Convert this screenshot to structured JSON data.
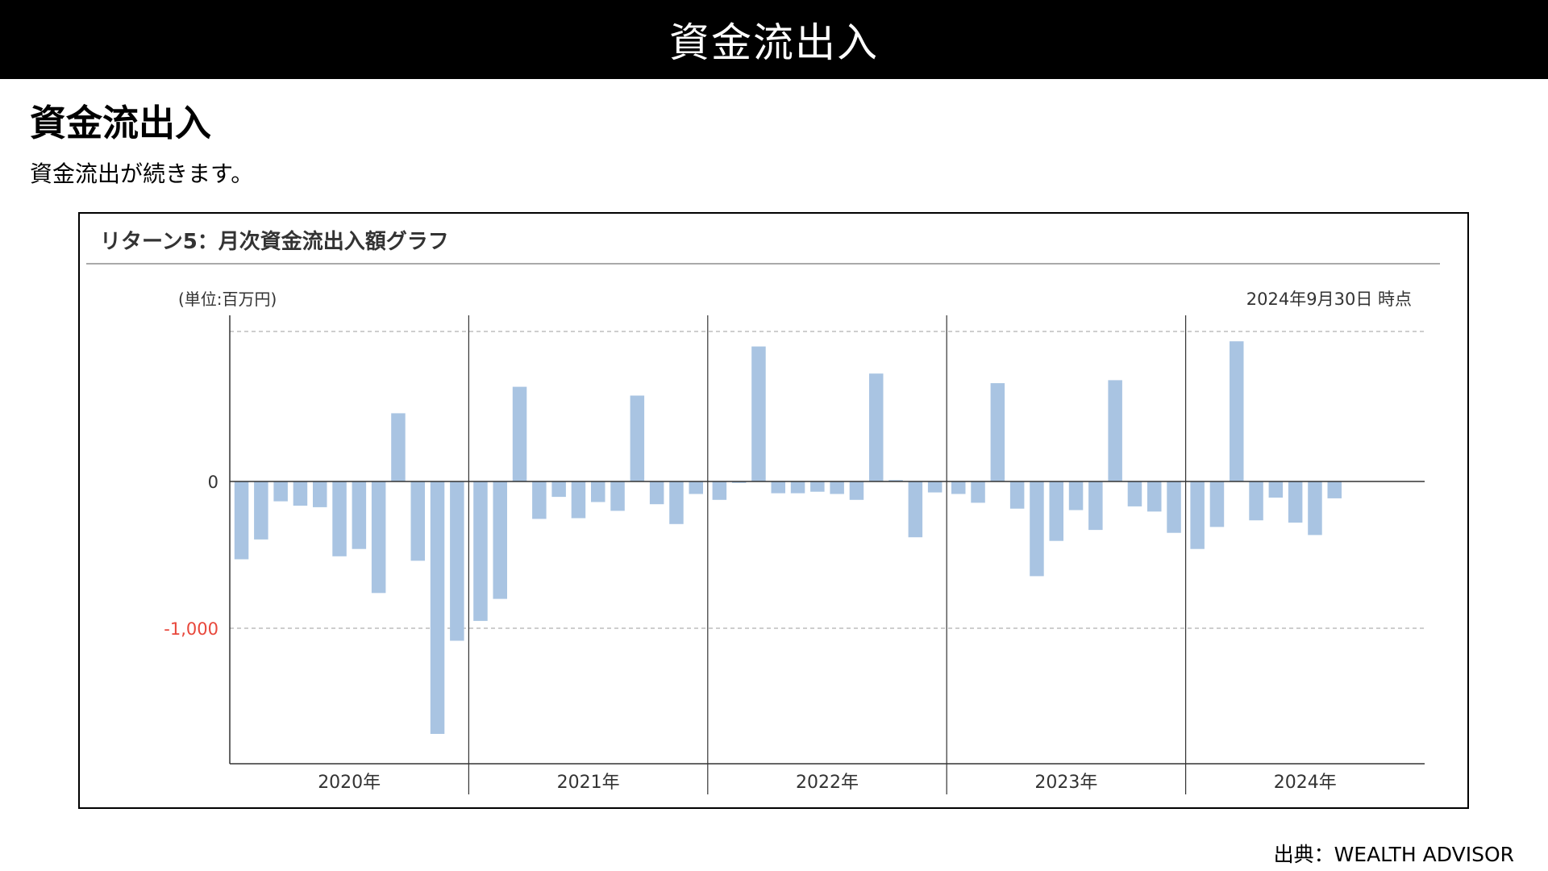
{
  "header": {
    "title": "資金流出入"
  },
  "section": {
    "heading": "資金流出入",
    "subtitle": "資金流出が続きます。"
  },
  "source": "出典：WEALTH ADVISOR",
  "chart_data": {
    "type": "bar",
    "title": "リターン5：月次資金流出入額グラフ",
    "unit_label": "(単位:百万円)",
    "as_of": "2024年9月30日 時点",
    "y_ticks": [
      {
        "value": 0,
        "label": "0",
        "color": "#333333"
      },
      {
        "value": -1000,
        "label": "-1,000",
        "color": "#e8473b"
      }
    ],
    "ylim": [
      -1900,
      1000
    ],
    "grid": "dashed",
    "bar_color": "#a9c4e2",
    "groups": [
      {
        "label": "2020年",
        "values": [
          -530,
          -395,
          -135,
          -165,
          -175,
          -510,
          -460,
          -760,
          465,
          -540,
          -1720,
          -1085
        ]
      },
      {
        "label": "2021年",
        "values": [
          -950,
          -800,
          645,
          -255,
          -105,
          -250,
          -140,
          -200,
          585,
          -155,
          -290,
          -85
        ]
      },
      {
        "label": "2022年",
        "values": [
          -125,
          -10,
          920,
          -80,
          -80,
          -70,
          -85,
          -125,
          735,
          10,
          -380,
          -75
        ]
      },
      {
        "label": "2023年",
        "values": [
          -85,
          -145,
          670,
          -185,
          -645,
          -405,
          -195,
          -330,
          690,
          -170,
          -205,
          -350
        ]
      },
      {
        "label": "2024年",
        "values": [
          -460,
          -310,
          955,
          -265,
          -110,
          -280,
          -365,
          -115
        ]
      }
    ]
  }
}
